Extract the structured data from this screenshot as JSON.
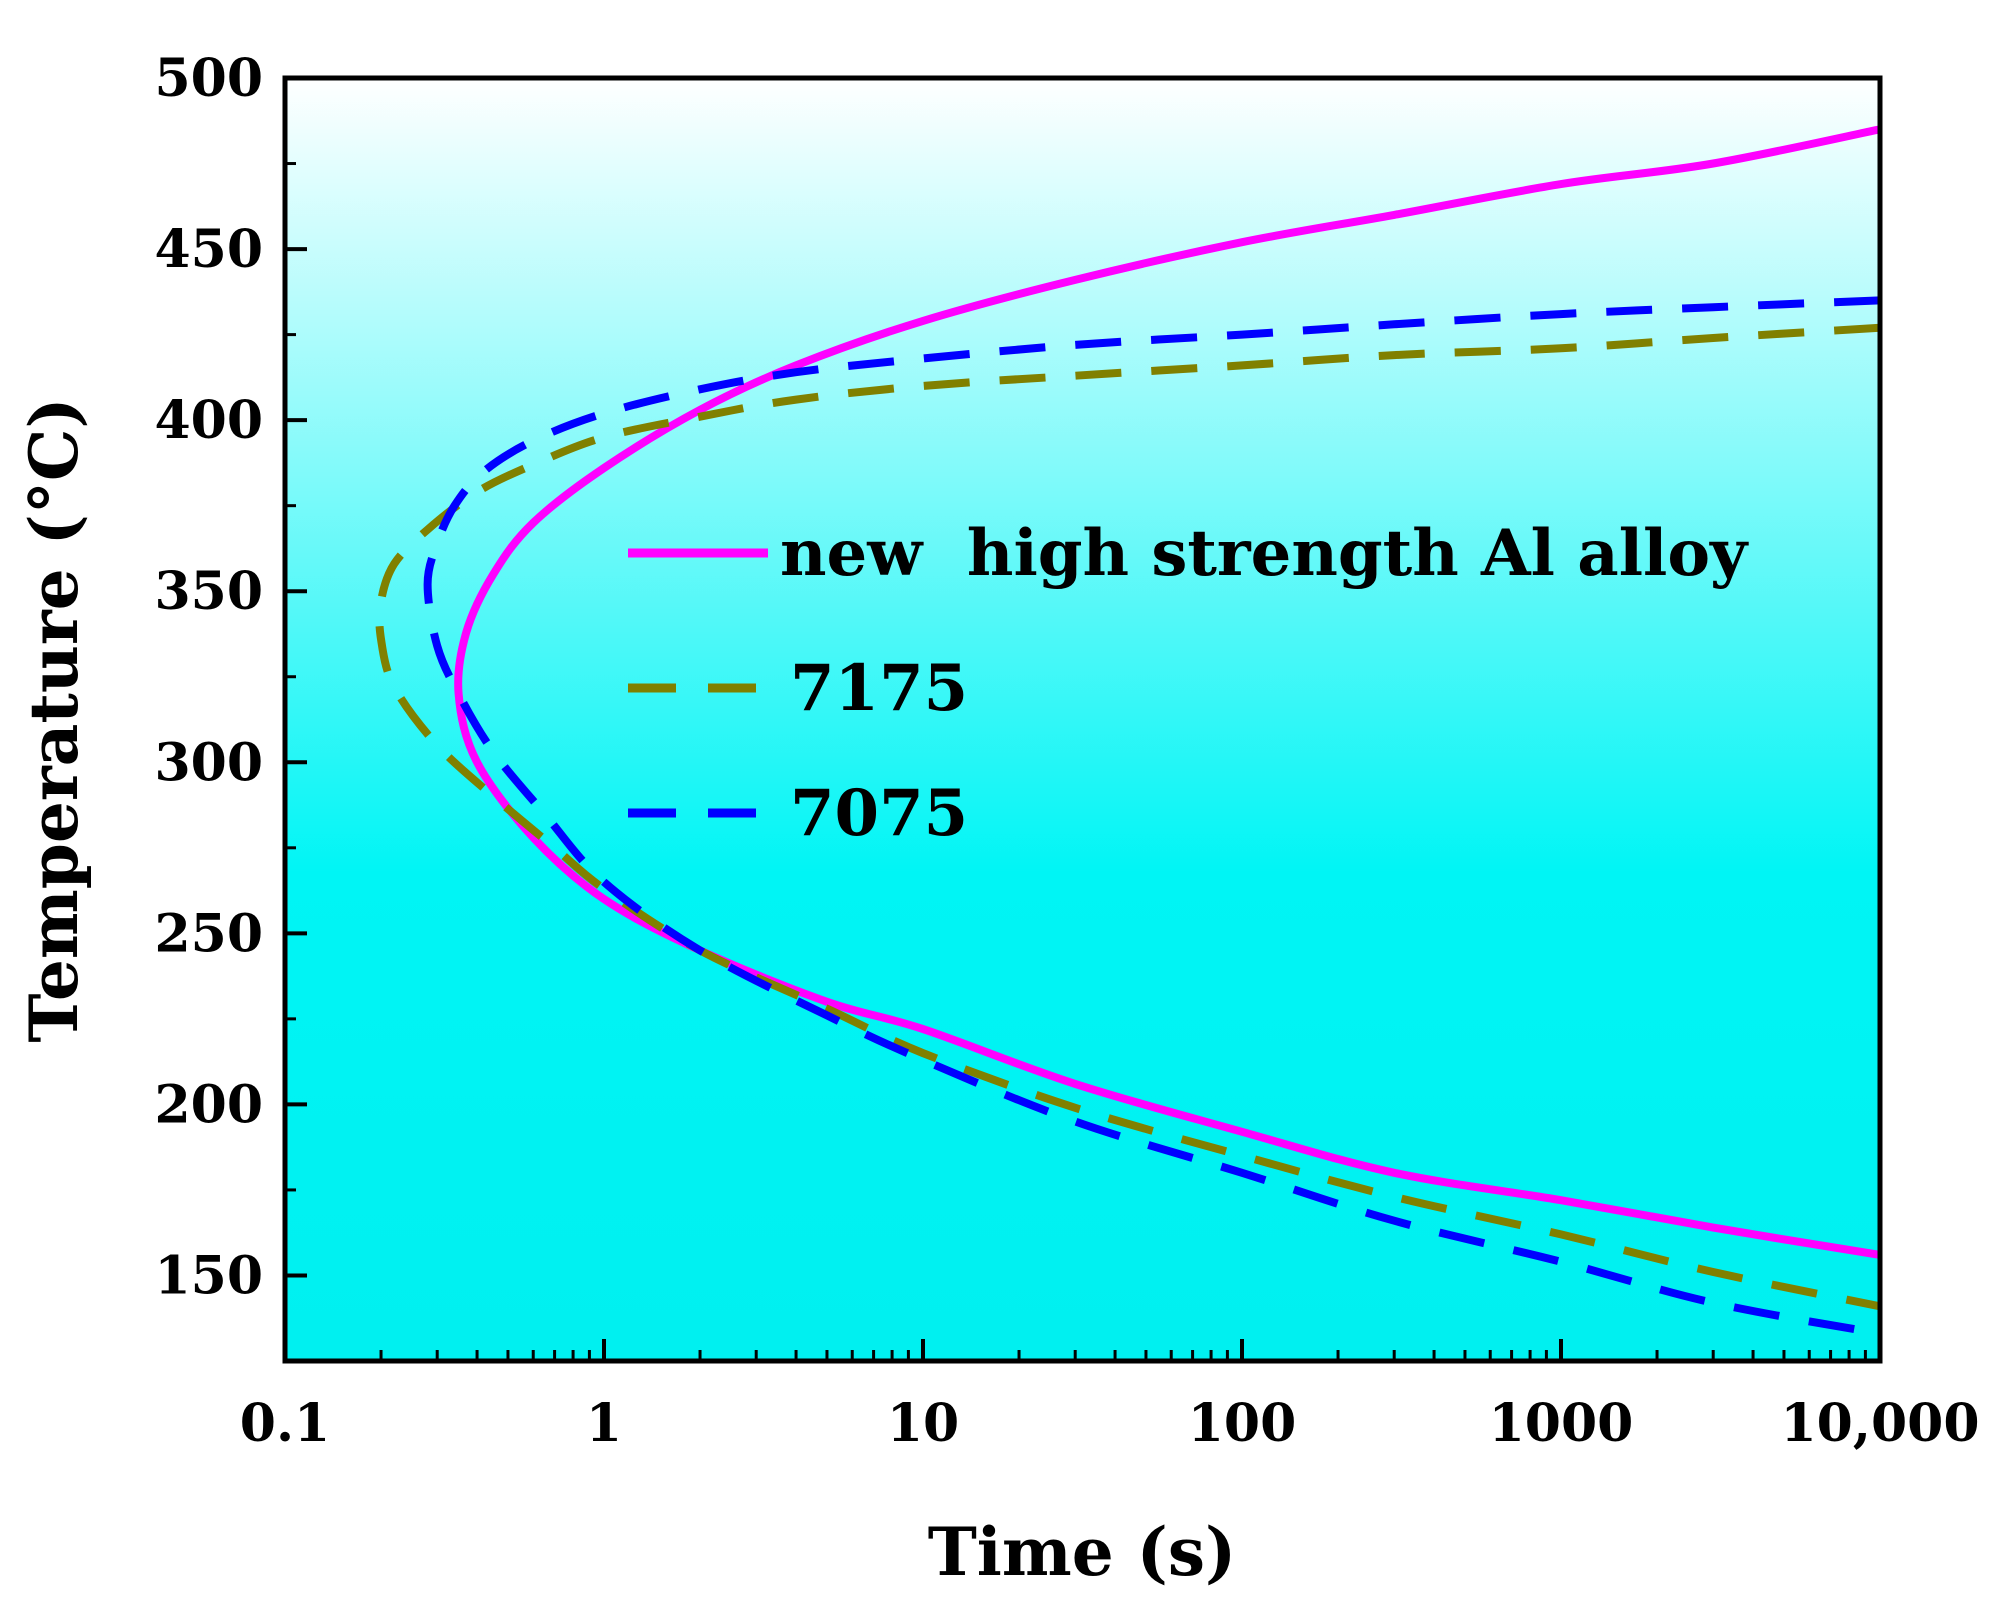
{
  "chart_data": {
    "type": "line",
    "title": "",
    "xlabel": "Time (s)",
    "ylabel": "Temperature (°C)",
    "xscale": "log",
    "xlim": [
      0.1,
      10000
    ],
    "ylim": [
      125,
      500
    ],
    "x_ticks": [
      0.1,
      1,
      10,
      100,
      1000,
      10000
    ],
    "x_tick_labels": [
      "0.1",
      "1",
      "10",
      "100",
      "1000",
      "10,000"
    ],
    "y_ticks": [
      150,
      200,
      250,
      300,
      350,
      400,
      450,
      500
    ],
    "y_tick_labels": [
      "150",
      "200",
      "250",
      "300",
      "350",
      "400",
      "450",
      "500"
    ],
    "background": "gradient: white (top) to cyan (bottom)",
    "legend_position": "center-right",
    "series": [
      {
        "name": "new  high strength Al alloy",
        "color": "#ff00ff",
        "style": "solid",
        "points": [
          {
            "t": 10000,
            "T": 485
          },
          {
            "t": 3000,
            "T": 475
          },
          {
            "t": 1000,
            "T": 469
          },
          {
            "t": 300,
            "T": 460
          },
          {
            "t": 100,
            "T": 452
          },
          {
            "t": 30,
            "T": 441
          },
          {
            "t": 10,
            "T": 429
          },
          {
            "t": 4,
            "T": 416
          },
          {
            "t": 2,
            "T": 403
          },
          {
            "t": 1,
            "T": 386
          },
          {
            "t": 0.6,
            "T": 370
          },
          {
            "t": 0.45,
            "T": 355
          },
          {
            "t": 0.37,
            "T": 338
          },
          {
            "t": 0.35,
            "T": 320
          },
          {
            "t": 0.4,
            "T": 300
          },
          {
            "t": 0.6,
            "T": 278
          },
          {
            "t": 1,
            "T": 260
          },
          {
            "t": 2,
            "T": 245
          },
          {
            "t": 5,
            "T": 230
          },
          {
            "t": 10,
            "T": 222
          },
          {
            "t": 30,
            "T": 206
          },
          {
            "t": 100,
            "T": 192
          },
          {
            "t": 300,
            "T": 180
          },
          {
            "t": 1000,
            "T": 172
          },
          {
            "t": 3000,
            "T": 164
          },
          {
            "t": 10000,
            "T": 156
          }
        ]
      },
      {
        "name": "7175",
        "color": "#808000",
        "style": "dashed",
        "points": [
          {
            "t": 10000,
            "T": 427
          },
          {
            "t": 3000,
            "T": 424
          },
          {
            "t": 1000,
            "T": 421
          },
          {
            "t": 300,
            "T": 419
          },
          {
            "t": 100,
            "T": 416
          },
          {
            "t": 30,
            "T": 413
          },
          {
            "t": 10,
            "T": 410
          },
          {
            "t": 4,
            "T": 406
          },
          {
            "t": 2,
            "T": 401
          },
          {
            "t": 1,
            "T": 395
          },
          {
            "t": 0.6,
            "T": 387
          },
          {
            "t": 0.4,
            "T": 379
          },
          {
            "t": 0.28,
            "T": 368
          },
          {
            "t": 0.22,
            "T": 358
          },
          {
            "t": 0.2,
            "T": 347
          },
          {
            "t": 0.2,
            "T": 336
          },
          {
            "t": 0.22,
            "T": 322
          },
          {
            "t": 0.3,
            "T": 305
          },
          {
            "t": 0.45,
            "T": 290
          },
          {
            "t": 0.7,
            "T": 275
          },
          {
            "t": 1,
            "T": 263
          },
          {
            "t": 2,
            "T": 245
          },
          {
            "t": 5,
            "T": 228
          },
          {
            "t": 10,
            "T": 215
          },
          {
            "t": 30,
            "T": 199
          },
          {
            "t": 100,
            "T": 185
          },
          {
            "t": 300,
            "T": 173
          },
          {
            "t": 1000,
            "T": 162
          },
          {
            "t": 3000,
            "T": 151
          },
          {
            "t": 10000,
            "T": 141
          }
        ]
      },
      {
        "name": "7075",
        "color": "#0000ff",
        "style": "dashed",
        "points": [
          {
            "t": 10000,
            "T": 435
          },
          {
            "t": 3000,
            "T": 433
          },
          {
            "t": 1000,
            "T": 431
          },
          {
            "t": 300,
            "T": 428
          },
          {
            "t": 100,
            "T": 425
          },
          {
            "t": 30,
            "T": 422
          },
          {
            "t": 10,
            "T": 418
          },
          {
            "t": 4,
            "T": 414
          },
          {
            "t": 2,
            "T": 409
          },
          {
            "t": 1,
            "T": 402
          },
          {
            "t": 0.6,
            "T": 394
          },
          {
            "t": 0.42,
            "T": 385
          },
          {
            "t": 0.34,
            "T": 375
          },
          {
            "t": 0.3,
            "T": 364
          },
          {
            "t": 0.28,
            "T": 352
          },
          {
            "t": 0.3,
            "T": 334
          },
          {
            "t": 0.35,
            "T": 320
          },
          {
            "t": 0.45,
            "T": 303
          },
          {
            "t": 0.65,
            "T": 285
          },
          {
            "t": 1,
            "T": 265
          },
          {
            "t": 2,
            "T": 245
          },
          {
            "t": 5,
            "T": 226
          },
          {
            "t": 10,
            "T": 213
          },
          {
            "t": 30,
            "T": 195
          },
          {
            "t": 100,
            "T": 180
          },
          {
            "t": 300,
            "T": 166
          },
          {
            "t": 1000,
            "T": 154
          },
          {
            "t": 3000,
            "T": 142
          },
          {
            "t": 10000,
            "T": 133
          }
        ]
      }
    ]
  }
}
